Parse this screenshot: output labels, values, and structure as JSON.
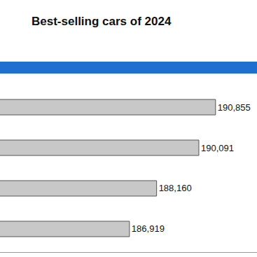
{
  "chart_data": {
    "type": "bar",
    "title": "Best-selling cars of 2024",
    "orientation": "horizontal",
    "categories": [
      null,
      null,
      null,
      null
    ],
    "values": [
      190855,
      190091,
      188160,
      186919
    ],
    "value_labels": [
      "190,855",
      "190,091",
      "188,160",
      "186,919"
    ],
    "data_labels": true,
    "color": "#c8c8c8",
    "xlim": [
      181000,
      192750
    ],
    "xticks": [],
    "tick_labels": false,
    "grid": false
  }
}
